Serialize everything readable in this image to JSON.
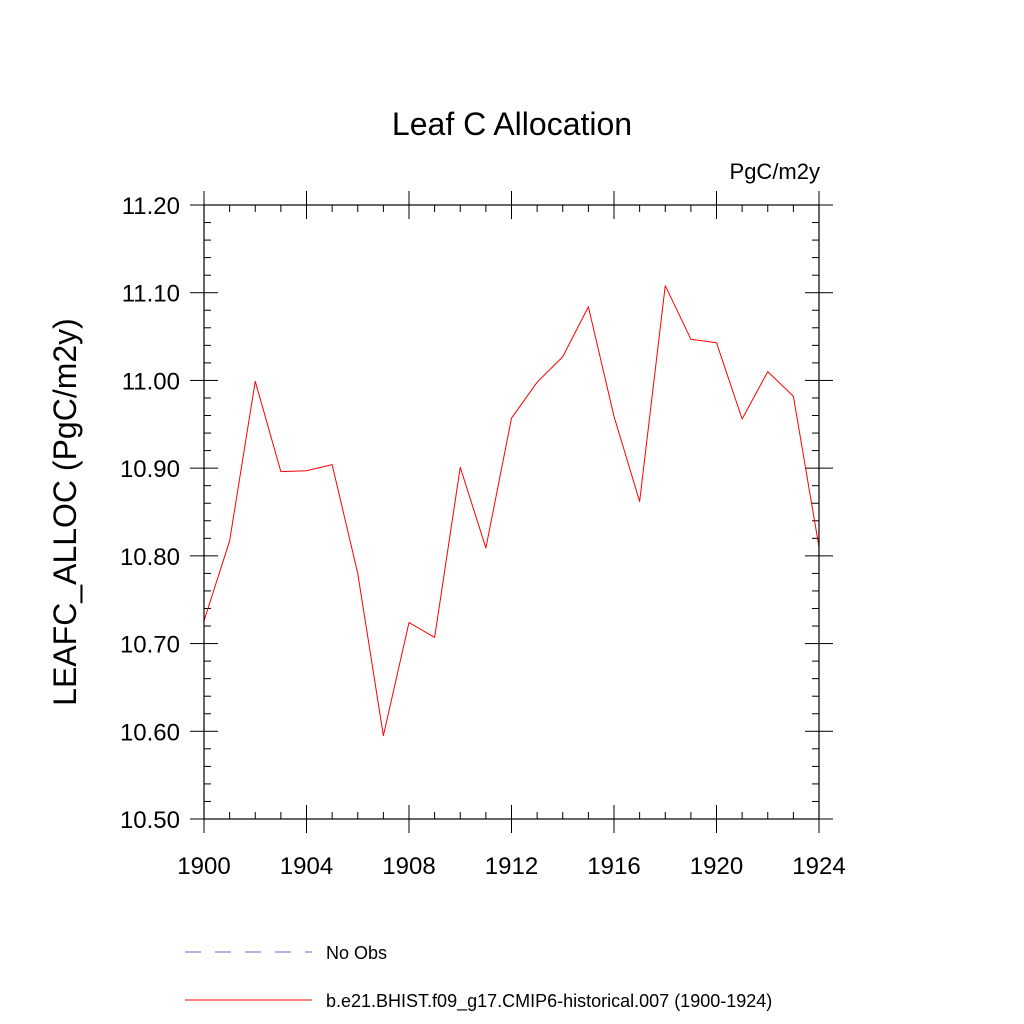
{
  "chart_data": {
    "type": "line",
    "title": "Leaf C Allocation",
    "units_label": "PgC/m2y",
    "ylabel": "LEAFC_ALLOC  (PgC/m2y)",
    "xlabel": "",
    "xlim": [
      1900,
      1924
    ],
    "ylim": [
      10.5,
      11.2
    ],
    "x_ticks": [
      1900,
      1904,
      1908,
      1912,
      1916,
      1920,
      1924
    ],
    "x_tick_labels": [
      "1900",
      "1904",
      "1908",
      "1912",
      "1916",
      "1920",
      "1924"
    ],
    "y_ticks": [
      10.5,
      10.6,
      10.7,
      10.8,
      10.9,
      11.0,
      11.1,
      11.2
    ],
    "y_tick_labels": [
      "10.50",
      "10.60",
      "10.70",
      "10.80",
      "10.90",
      "11.00",
      "11.10",
      "11.20"
    ],
    "grid": false,
    "series": [
      {
        "name": "b.e21.BHIST.f09_g17.CMIP6-historical.007 (1900-1924)",
        "color": "#ff0000",
        "style": "solid",
        "x": [
          1900,
          1901,
          1902,
          1903,
          1904,
          1905,
          1906,
          1907,
          1908,
          1909,
          1910,
          1911,
          1912,
          1913,
          1914,
          1915,
          1916,
          1917,
          1918,
          1919,
          1920,
          1921,
          1922,
          1923,
          1924
        ],
        "values": [
          10.726,
          10.817,
          10.999,
          10.896,
          10.897,
          10.904,
          10.78,
          10.595,
          10.724,
          10.707,
          10.901,
          10.809,
          10.957,
          10.998,
          11.027,
          11.084,
          10.959,
          10.862,
          11.108,
          11.047,
          11.043,
          10.956,
          11.01,
          10.982,
          10.81
        ]
      }
    ],
    "legend": [
      {
        "label": "No Obs",
        "color": "#6666cc",
        "style": "dashed"
      },
      {
        "label": "b.e21.BHIST.f09_g17.CMIP6-historical.007 (1900-1924)",
        "color": "#ff0000",
        "style": "solid"
      }
    ]
  }
}
